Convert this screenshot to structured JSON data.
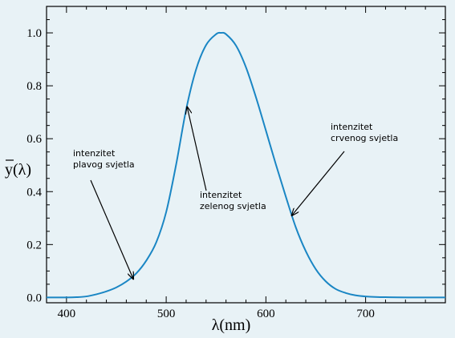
{
  "chart_data": {
    "type": "line",
    "xlabel": "λ(nm)",
    "ylabel": "y(λ)",
    "xlim": [
      380,
      780
    ],
    "ylim": [
      -0.02,
      1.1
    ],
    "x_ticks": [
      400,
      500,
      600,
      700
    ],
    "y_ticks": [
      0.0,
      0.2,
      0.4,
      0.6,
      0.8,
      1.0
    ],
    "y_tick_labels": [
      "0.0",
      "0.2",
      "0.4",
      "0.6",
      "0.8",
      "1.0"
    ],
    "grid": false,
    "series": [
      {
        "x": [
          380,
          400,
          410,
          420,
          430,
          440,
          450,
          460,
          470,
          480,
          490,
          500,
          510,
          520,
          530,
          540,
          550,
          555,
          560,
          570,
          580,
          590,
          600,
          610,
          620,
          630,
          640,
          650,
          660,
          670,
          680,
          690,
          700,
          720,
          750,
          780
        ],
        "y": [
          0.0,
          0.0,
          0.001,
          0.004,
          0.012,
          0.023,
          0.038,
          0.06,
          0.091,
          0.139,
          0.208,
          0.323,
          0.503,
          0.71,
          0.862,
          0.954,
          0.995,
          1.0,
          0.995,
          0.952,
          0.87,
          0.757,
          0.631,
          0.503,
          0.381,
          0.265,
          0.175,
          0.107,
          0.061,
          0.032,
          0.017,
          0.008,
          0.004,
          0.001,
          0.0,
          0.0
        ]
      }
    ],
    "annotations": [
      {
        "lines": [
          "intenzitet",
          "plavog svjetla"
        ],
        "target_x": 467,
        "target_y": 0.07
      },
      {
        "lines": [
          "intenzitet",
          "zelenog svjetla"
        ],
        "target_x": 521,
        "target_y": 0.72
      },
      {
        "lines": [
          "intenzitet",
          "crvenog svjetla"
        ],
        "target_x": 626,
        "target_y": 0.31
      }
    ]
  }
}
